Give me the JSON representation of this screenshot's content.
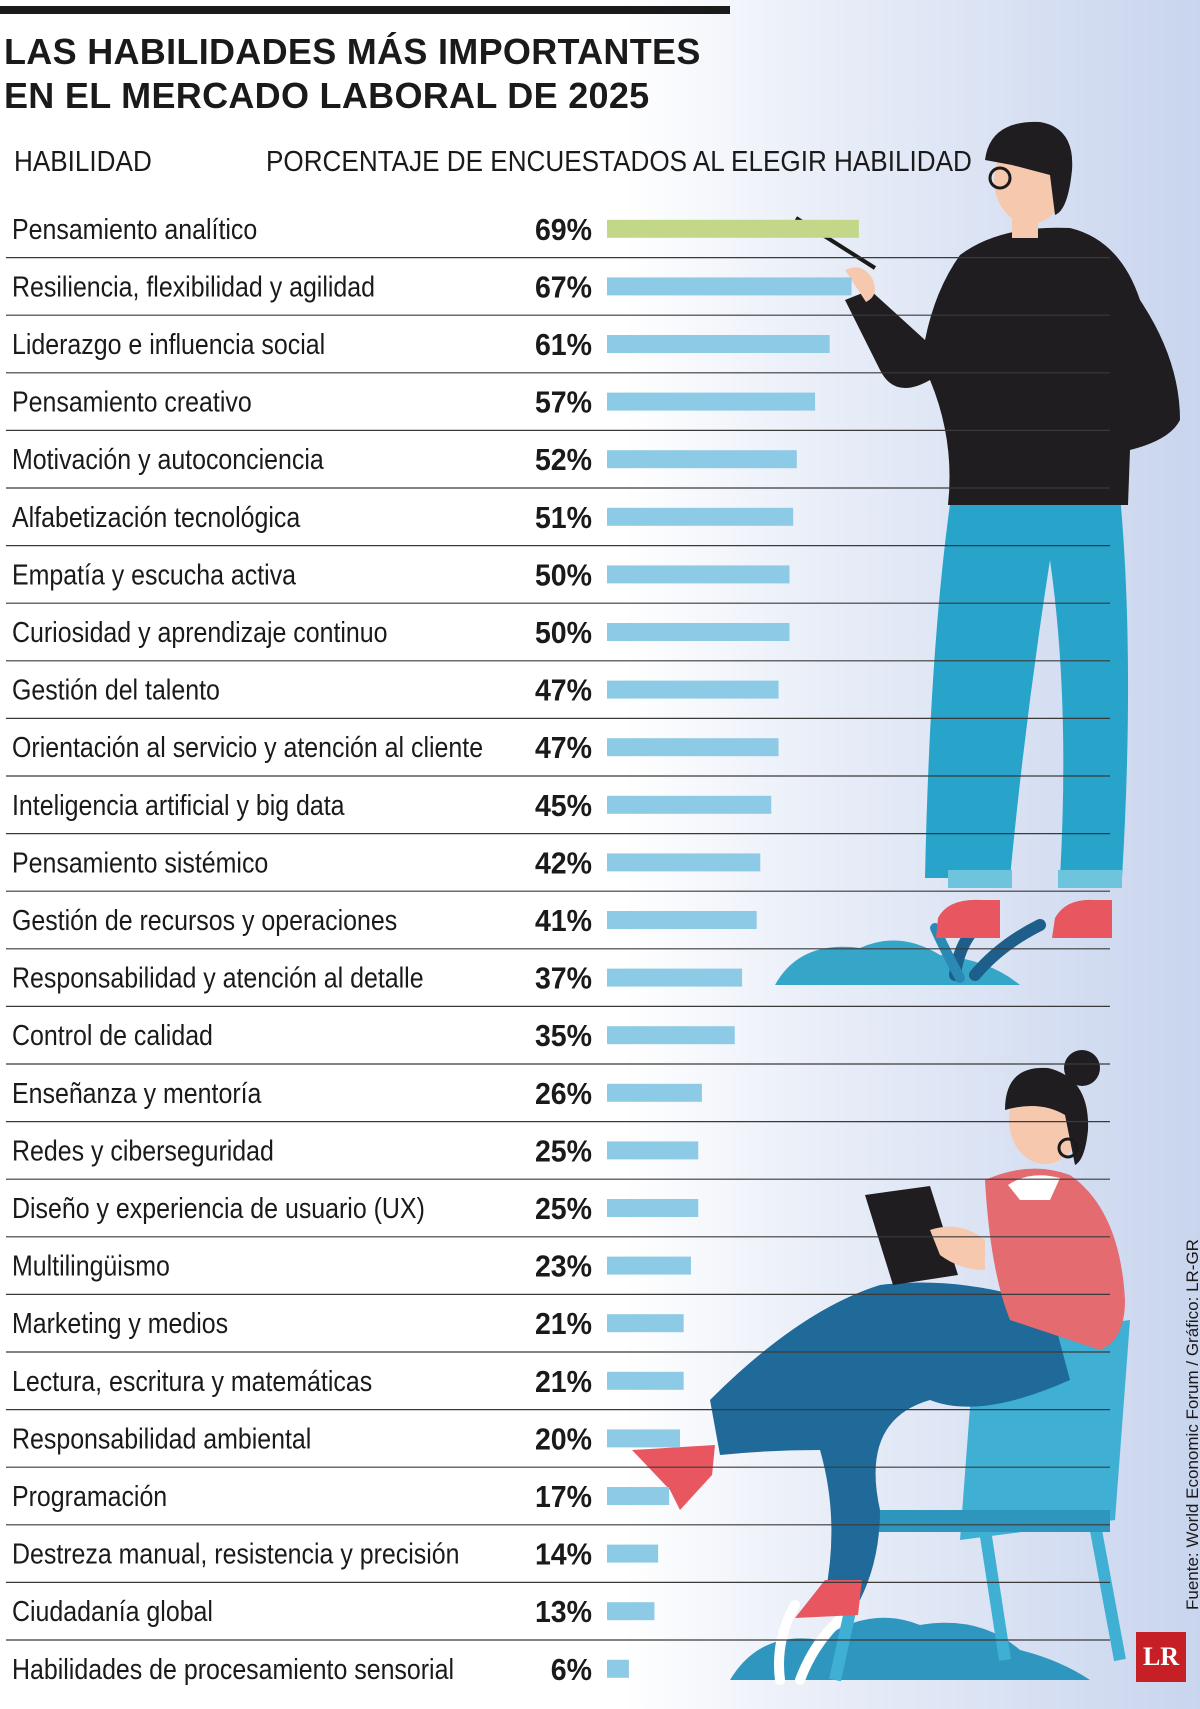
{
  "title": "LAS HABILIDADES MÁS IMPORTANTES\nEN EL MERCADO LABORAL DE 2025",
  "headers": {
    "skill": "HABILIDAD",
    "percent": "PORCENTAJE DE ENCUESTADOS AL ELEGIR HABILIDAD"
  },
  "source": "Fuente: World Economic Forum / Gráfico: LR-GR",
  "logo_text": "LR",
  "colors": {
    "highlight_bar": "#c3d789",
    "bar": "#8dcae6",
    "text": "#1a1a1a",
    "rule": "#3a3a3a",
    "logo": "#c62026"
  },
  "chart_data": {
    "type": "bar",
    "orientation": "horizontal",
    "categories": [
      "Pensamiento analítico",
      "Resiliencia, flexibilidad y agilidad",
      "Liderazgo e influencia social",
      "Pensamiento creativo",
      "Motivación y autoconciencia",
      "Alfabetización tecnológica",
      "Empatía y escucha activa",
      "Curiosidad y aprendizaje continuo",
      "Gestión del talento",
      "Orientación al servicio y atención al cliente",
      "Inteligencia artificial y big data",
      "Pensamiento sistémico",
      "Gestión de recursos y operaciones",
      "Responsabilidad y atención al detalle",
      "Control de calidad",
      "Enseñanza y mentoría",
      "Redes y ciberseguridad",
      "Diseño y experiencia de usuario (UX)",
      "Multilingüismo",
      "Marketing y medios",
      "Lectura, escritura y matemáticas",
      "Responsabilidad ambiental",
      "Programación",
      "Destreza manual, resistencia y precisión",
      "Ciudadanía global",
      "Habilidades de procesamiento sensorial"
    ],
    "values": [
      69,
      67,
      61,
      57,
      52,
      51,
      50,
      50,
      47,
      47,
      45,
      42,
      41,
      37,
      35,
      26,
      25,
      25,
      23,
      21,
      21,
      20,
      17,
      14,
      13,
      6
    ],
    "value_labels": [
      "69%",
      "67%",
      "61%",
      "57%",
      "52%",
      "51%",
      "50%",
      "50%",
      "47%",
      "47%",
      "45%",
      "42%",
      "41%",
      "37%",
      "35%",
      "26%",
      "25%",
      "25%",
      "23%",
      "21%",
      "21%",
      "20%",
      "17%",
      "14%",
      "13%",
      "6%"
    ],
    "unit": "%",
    "highlight_index": 0,
    "xlim": [
      0,
      100
    ],
    "grid": false,
    "legend": "none"
  }
}
